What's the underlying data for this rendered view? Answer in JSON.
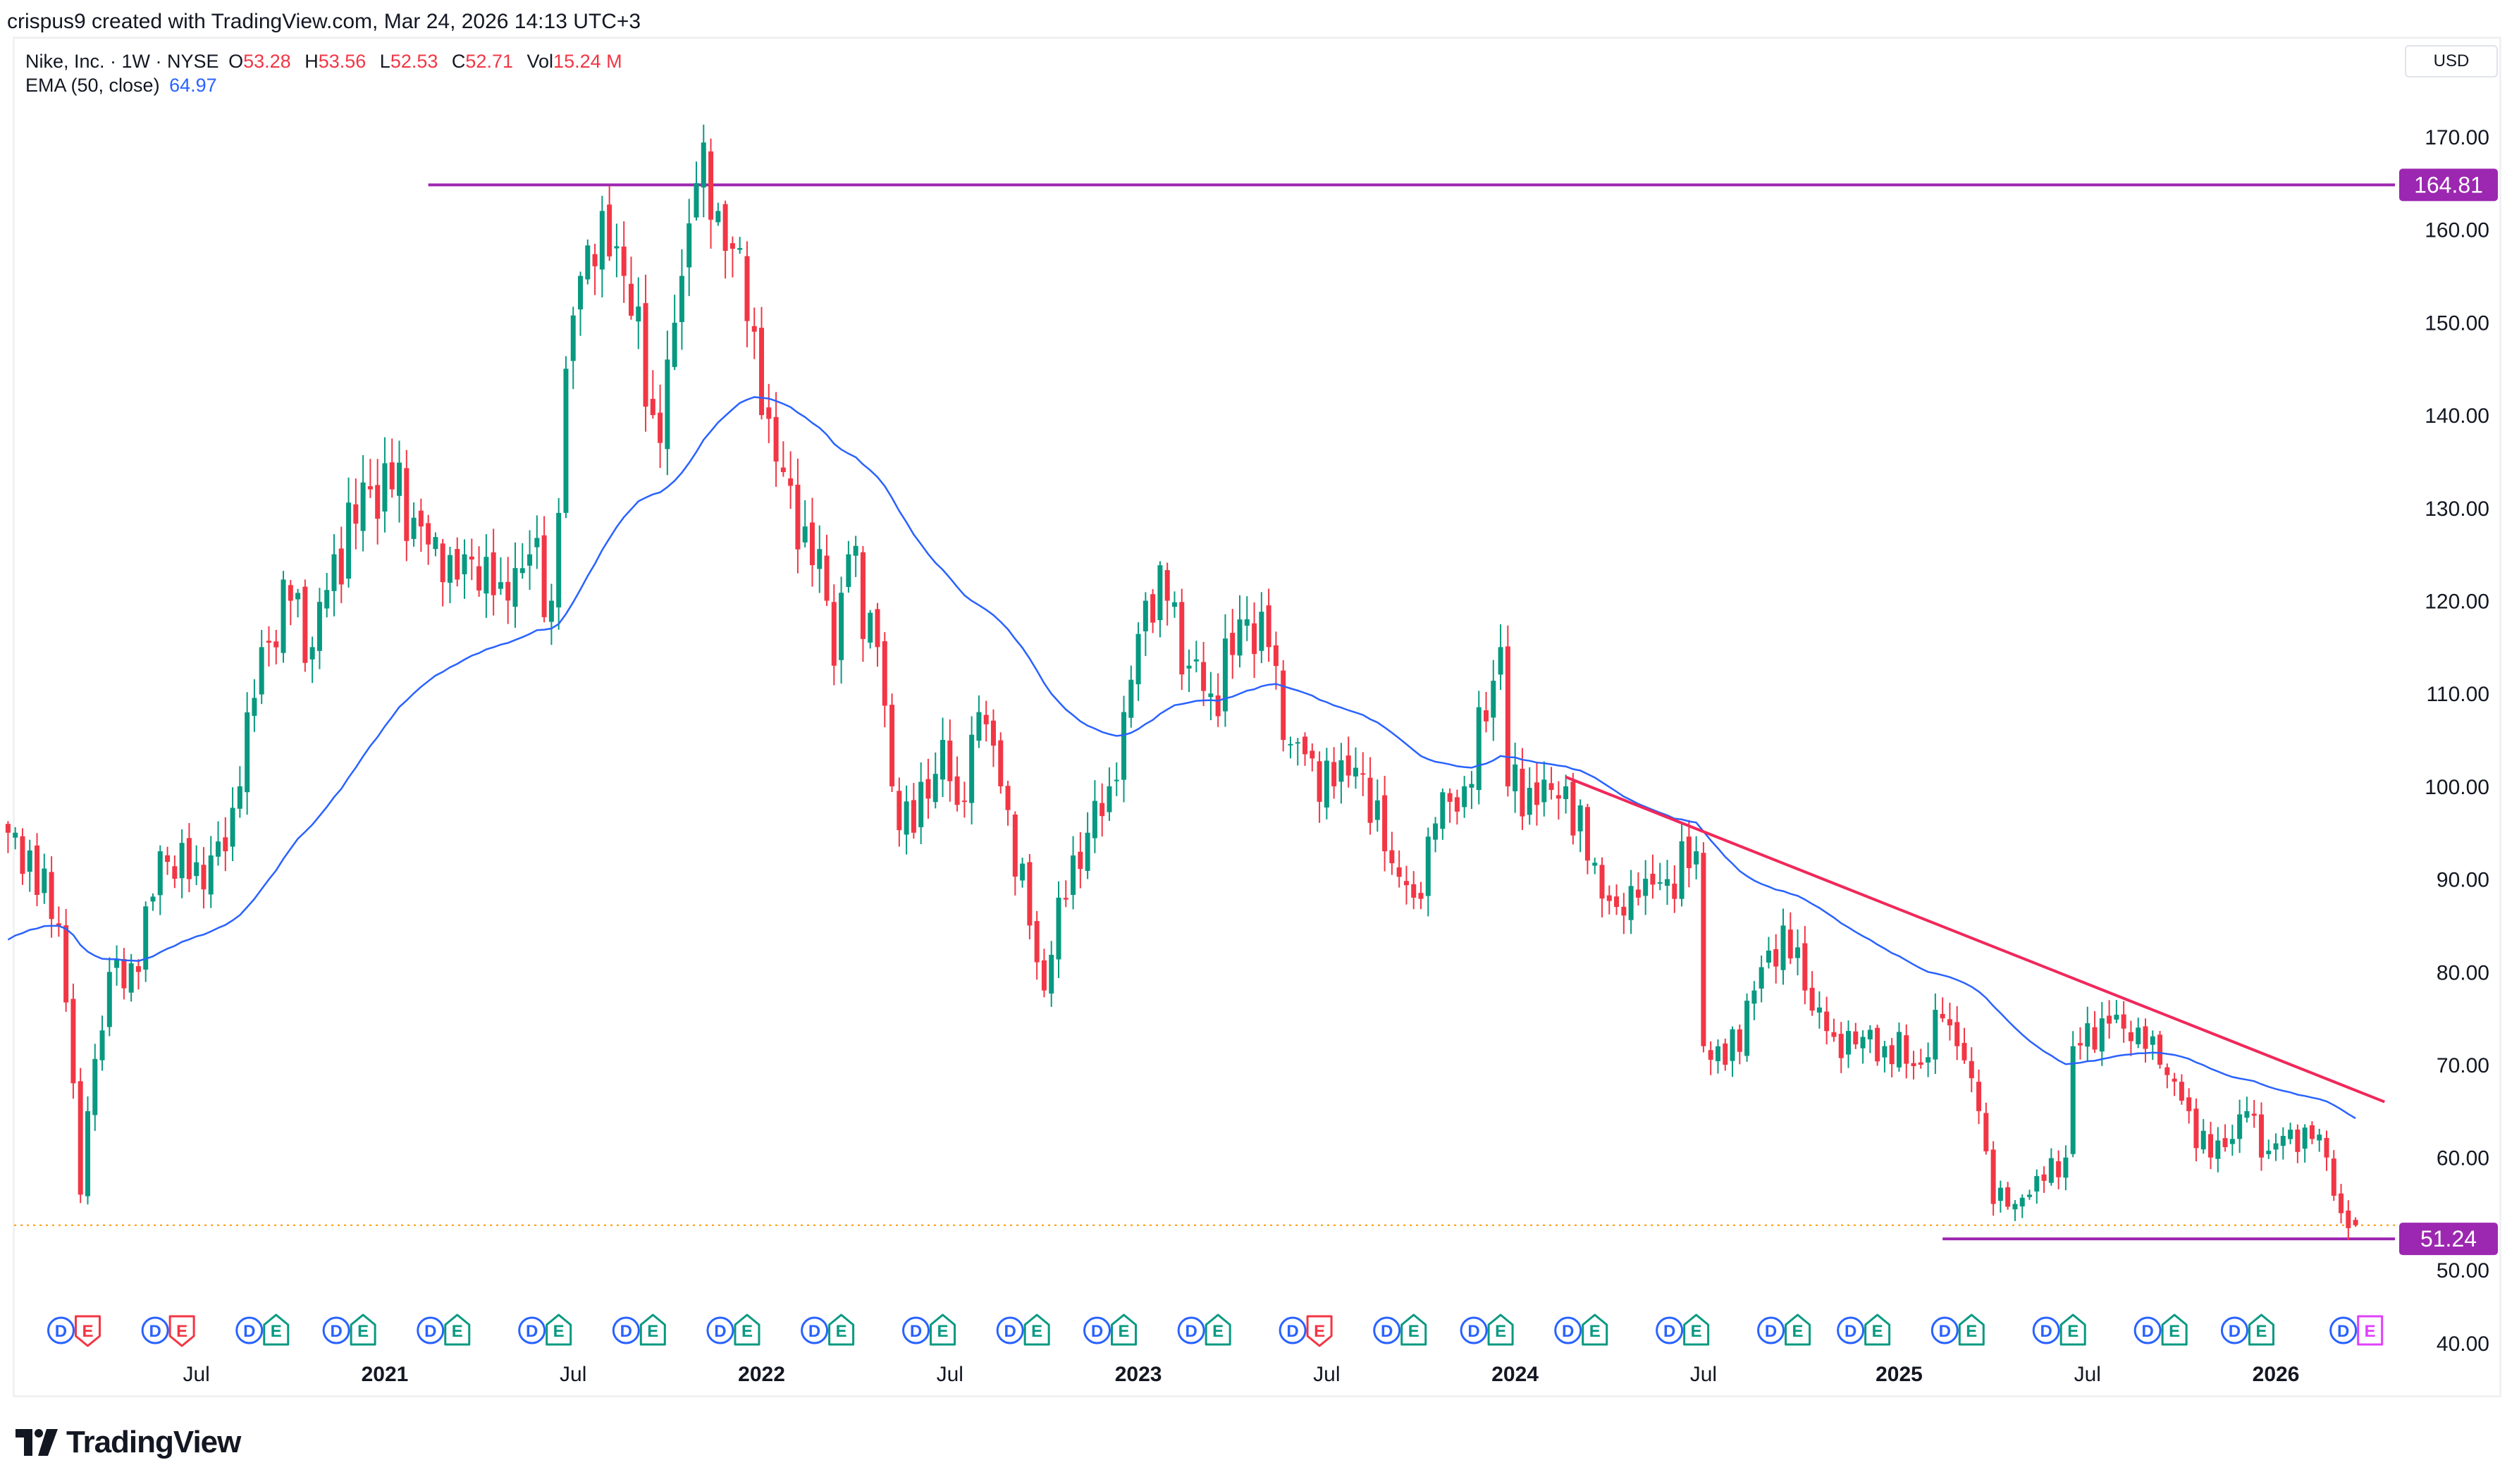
{
  "credit": "crispus9 created with TradingView.com, Mar 24, 2026 14:13 UTC+3",
  "legend": {
    "symbol": "Nike, Inc. · 1W · NYSE",
    "o_label": "O",
    "o": "53.28",
    "h_label": "H",
    "h": "53.56",
    "l_label": "L",
    "l": "52.53",
    "c_label": "C",
    "c": "52.71",
    "vol_label": "Vol",
    "vol": "15.24 M",
    "ema_label": "EMA (50, close)",
    "ema": "64.97"
  },
  "currency": "USD",
  "logo": "TradingView",
  "colors": {
    "up": "#089981",
    "down": "#f23645",
    "ema": "#2962ff",
    "level": "#9c27b0",
    "trend": "#f0285a",
    "last": "#ff9800"
  },
  "chart_data": {
    "type": "candlestick",
    "title": "Nike, Inc. · 1W · NYSE",
    "ylim": [
      40,
      170
    ],
    "y_ticks": [
      "170.00",
      "160.00",
      "150.00",
      "140.00",
      "130.00",
      "120.00",
      "110.00",
      "100.00",
      "90.00",
      "80.00",
      "70.00",
      "60.00",
      "50.00",
      "40.00"
    ],
    "x_ticks": [
      {
        "label": "Jul",
        "week": 26,
        "bold": false
      },
      {
        "label": "2021",
        "week": 52,
        "bold": true
      },
      {
        "label": "Jul",
        "week": 78,
        "bold": false
      },
      {
        "label": "2022",
        "week": 104,
        "bold": true
      },
      {
        "label": "Jul",
        "week": 130,
        "bold": false
      },
      {
        "label": "2023",
        "week": 156,
        "bold": true
      },
      {
        "label": "Jul",
        "week": 182,
        "bold": false
      },
      {
        "label": "2024",
        "week": 208,
        "bold": true
      },
      {
        "label": "Jul",
        "week": 234,
        "bold": false
      },
      {
        "label": "2025",
        "week": 261,
        "bold": true
      },
      {
        "label": "Jul",
        "week": 287,
        "bold": false
      },
      {
        "label": "2026",
        "week": 313,
        "bold": true
      }
    ],
    "close_anchors": [
      [
        0,
        95
      ],
      [
        1,
        95
      ],
      [
        7,
        85
      ],
      [
        9,
        68
      ],
      [
        10,
        56
      ],
      [
        11,
        65
      ],
      [
        14,
        80
      ],
      [
        18,
        80
      ],
      [
        21,
        93
      ],
      [
        25,
        90
      ],
      [
        30,
        93
      ],
      [
        32,
        100
      ],
      [
        35,
        115
      ],
      [
        39,
        120
      ],
      [
        42,
        115
      ],
      [
        45,
        125
      ],
      [
        50,
        132
      ],
      [
        53,
        132
      ],
      [
        57,
        128
      ],
      [
        60,
        122
      ],
      [
        63,
        125
      ],
      [
        68,
        122
      ],
      [
        72,
        125
      ],
      [
        75,
        120
      ],
      [
        77,
        145
      ],
      [
        79,
        155
      ],
      [
        82,
        162
      ],
      [
        85,
        155
      ],
      [
        89,
        140
      ],
      [
        90,
        137
      ],
      [
        93,
        155
      ],
      [
        95,
        165
      ],
      [
        98,
        162
      ],
      [
        101,
        158
      ],
      [
        104,
        140
      ],
      [
        106,
        135
      ],
      [
        110,
        128
      ],
      [
        113,
        120
      ],
      [
        114,
        113
      ],
      [
        116,
        125
      ],
      [
        120,
        115
      ],
      [
        122,
        100
      ],
      [
        125,
        95
      ],
      [
        129,
        105
      ],
      [
        131,
        98
      ],
      [
        134,
        108
      ],
      [
        137,
        100
      ],
      [
        141,
        85
      ],
      [
        143,
        78
      ],
      [
        145,
        88
      ],
      [
        149,
        95
      ],
      [
        152,
        100
      ],
      [
        154,
        108
      ],
      [
        157,
        120
      ],
      [
        160,
        120
      ],
      [
        163,
        113
      ],
      [
        166,
        110
      ],
      [
        171,
        118
      ],
      [
        174,
        115
      ],
      [
        176,
        105
      ],
      [
        180,
        103
      ],
      [
        183,
        100
      ],
      [
        186,
        102
      ],
      [
        190,
        93
      ],
      [
        194,
        88
      ],
      [
        197,
        96
      ],
      [
        201,
        100
      ],
      [
        204,
        107
      ],
      [
        206,
        115
      ],
      [
        207,
        100
      ],
      [
        211,
        98
      ],
      [
        215,
        100
      ],
      [
        218,
        92
      ],
      [
        222,
        87
      ],
      [
        225,
        88
      ],
      [
        229,
        90
      ],
      [
        233,
        93
      ],
      [
        234,
        72
      ],
      [
        237,
        70
      ],
      [
        241,
        78
      ],
      [
        245,
        85
      ],
      [
        248,
        78
      ],
      [
        252,
        73
      ],
      [
        256,
        73
      ],
      [
        259,
        72
      ],
      [
        264,
        70
      ],
      [
        267,
        75
      ],
      [
        269,
        72
      ],
      [
        272,
        65
      ],
      [
        274,
        55
      ],
      [
        277,
        55
      ],
      [
        280,
        58
      ],
      [
        284,
        60
      ],
      [
        285,
        72
      ],
      [
        289,
        75
      ],
      [
        294,
        74
      ],
      [
        297,
        70
      ],
      [
        301,
        65
      ],
      [
        304,
        60
      ],
      [
        307,
        62
      ],
      [
        309,
        65
      ],
      [
        311,
        60
      ],
      [
        315,
        63
      ],
      [
        318,
        62
      ],
      [
        320,
        60
      ],
      [
        322,
        54
      ],
      [
        324,
        52.71
      ]
    ],
    "last_candle": {
      "open": 53.28,
      "high": 53.56,
      "low": 52.53,
      "close": 52.71
    },
    "ema": {
      "period": 50,
      "source": "close",
      "last": 64.97
    },
    "levels": [
      {
        "price": 164.81,
        "label": "164.81",
        "from_week": 58
      },
      {
        "price": 51.24,
        "label": "51.24",
        "from_week": 267
      }
    ],
    "trendline": {
      "from": [
        215,
        101
      ],
      "to": [
        328,
        66
      ]
    },
    "last_price": 52.71,
    "events": [
      {
        "week": 11,
        "d": "D",
        "e": "E",
        "kind": "miss"
      },
      {
        "week": 24,
        "d": "D",
        "e": "E",
        "kind": "miss"
      },
      {
        "week": 37,
        "d": "D",
        "e": "E",
        "kind": "beat"
      },
      {
        "week": 49,
        "d": "D",
        "e": "E",
        "kind": "beat"
      },
      {
        "week": 62,
        "d": "D",
        "e": "E",
        "kind": "beat"
      },
      {
        "week": 76,
        "d": "D",
        "e": "E",
        "kind": "beat"
      },
      {
        "week": 89,
        "d": "D",
        "e": "E",
        "kind": "beat"
      },
      {
        "week": 102,
        "d": "D",
        "e": "E",
        "kind": "beat"
      },
      {
        "week": 115,
        "d": "D",
        "e": "E",
        "kind": "beat"
      },
      {
        "week": 129,
        "d": "D",
        "e": "E",
        "kind": "beat"
      },
      {
        "week": 142,
        "d": "D",
        "e": "E",
        "kind": "beat"
      },
      {
        "week": 154,
        "d": "D",
        "e": "E",
        "kind": "beat"
      },
      {
        "week": 167,
        "d": "D",
        "e": "E",
        "kind": "beat"
      },
      {
        "week": 181,
        "d": "D",
        "e": "E",
        "kind": "miss"
      },
      {
        "week": 194,
        "d": "D",
        "e": "E",
        "kind": "beat"
      },
      {
        "week": 206,
        "d": "D",
        "e": "E",
        "kind": "beat"
      },
      {
        "week": 219,
        "d": "D",
        "e": "E",
        "kind": "beat"
      },
      {
        "week": 233,
        "d": "D",
        "e": "E",
        "kind": "beat"
      },
      {
        "week": 247,
        "d": "D",
        "e": "E",
        "kind": "beat"
      },
      {
        "week": 258,
        "d": "D",
        "e": "E",
        "kind": "beat"
      },
      {
        "week": 271,
        "d": "D",
        "e": "E",
        "kind": "beat"
      },
      {
        "week": 285,
        "d": "D",
        "e": "E",
        "kind": "beat"
      },
      {
        "week": 299,
        "d": "D",
        "e": "E",
        "kind": "beat"
      },
      {
        "week": 311,
        "d": "D",
        "e": "E",
        "kind": "beat"
      },
      {
        "week": 326,
        "d": "D",
        "e": "E",
        "kind": "future"
      }
    ]
  }
}
